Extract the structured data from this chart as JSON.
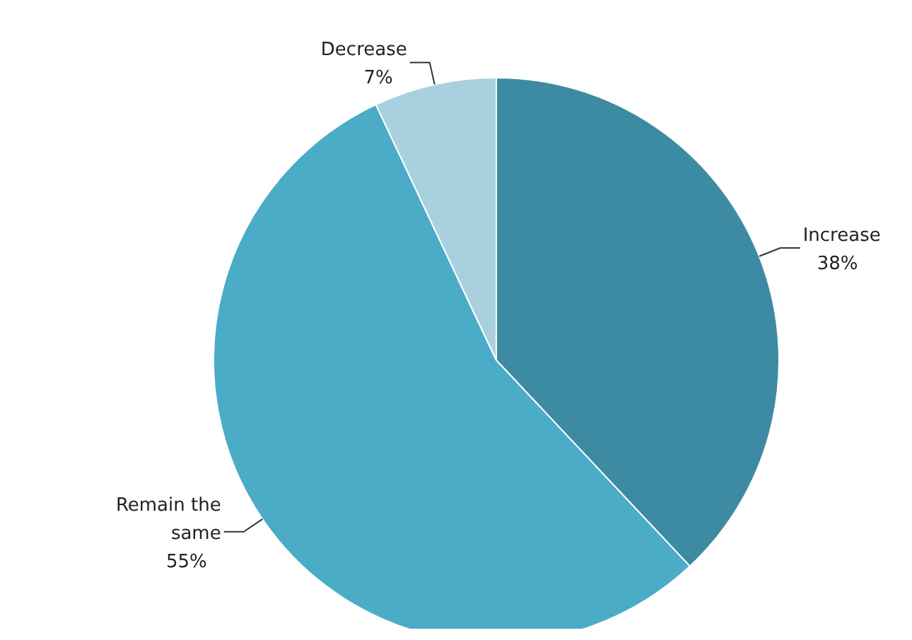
{
  "chart_data": {
    "type": "pie",
    "categories": [
      "Increase",
      "Remain the same",
      "Decrease"
    ],
    "values": [
      38,
      55,
      7
    ],
    "colors": [
      "#3d8ba3",
      "#4aacc6",
      "#a9d0df"
    ],
    "value_labels": [
      "38%",
      "55%",
      "7%"
    ],
    "legend": false
  }
}
